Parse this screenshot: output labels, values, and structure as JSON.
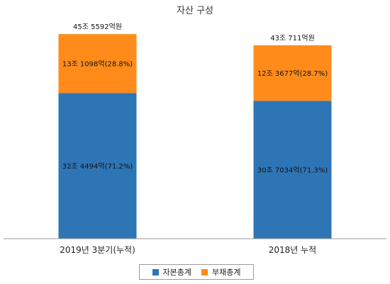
{
  "chart_data": {
    "type": "bar",
    "stacked": true,
    "title": "자산 구성",
    "categories": [
      "2019년 3분기(누적)",
      "2018년 누적"
    ],
    "series": [
      {
        "name": "자본총계",
        "color": "#2e75b6",
        "values": [
          324494,
          307034
        ],
        "labels": [
          "32조 4494억(71.2%)",
          "30조 7034억(71.3%)"
        ]
      },
      {
        "name": "부채총계",
        "color": "#ff8c1a",
        "values": [
          131098,
          123677
        ],
        "labels": [
          "13조 1098억(28.8%)",
          "12조 3677억(28.7%)"
        ]
      }
    ],
    "totals": [
      455592,
      430711
    ],
    "total_labels": [
      "45조 5592억원",
      "43조 711억원"
    ],
    "ylim": [
      0,
      500000
    ],
    "grid": false,
    "legend_position": "bottom"
  }
}
